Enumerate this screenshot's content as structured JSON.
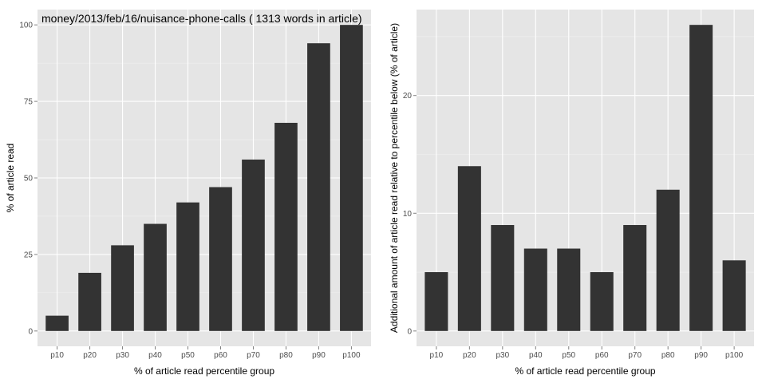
{
  "colors": {
    "panel_bg": "#e5e5e5",
    "grid_major": "#ffffff",
    "bar_fill": "#333333",
    "tick_text": "#4d4d4d",
    "tick_mark": "#7f7f7f"
  },
  "chart_data": [
    {
      "type": "bar",
      "title": "money/2013/feb/16/nuisance-phone-calls ( 1313 words in article)",
      "xlabel": "% of article read percentile group",
      "ylabel": "% of article read",
      "categories": [
        "p10",
        "p20",
        "p30",
        "p40",
        "p50",
        "p60",
        "p70",
        "p80",
        "p90",
        "p100"
      ],
      "values": [
        5,
        19,
        28,
        35,
        42,
        47,
        56,
        68,
        94,
        100
      ],
      "ylim": [
        -5,
        105
      ],
      "yticks": [
        0,
        25,
        50,
        75,
        100
      ],
      "ytick_labels": [
        "0",
        "25",
        "50",
        "75",
        "100"
      ],
      "grid": true,
      "legend": "none"
    },
    {
      "type": "bar",
      "title": "",
      "xlabel": "% of article read percentile group",
      "ylabel": "Additional amount of article read relative to percentile below (% of article)",
      "categories": [
        "p10",
        "p20",
        "p30",
        "p40",
        "p50",
        "p60",
        "p70",
        "p80",
        "p90",
        "p100"
      ],
      "values": [
        5,
        14,
        9,
        7,
        7,
        5,
        9,
        12,
        26,
        6
      ],
      "ylim": [
        -1.3,
        27.3
      ],
      "yticks": [
        0,
        10,
        20
      ],
      "ytick_labels": [
        "0",
        "10",
        "20"
      ],
      "grid": true,
      "legend": "none"
    }
  ]
}
